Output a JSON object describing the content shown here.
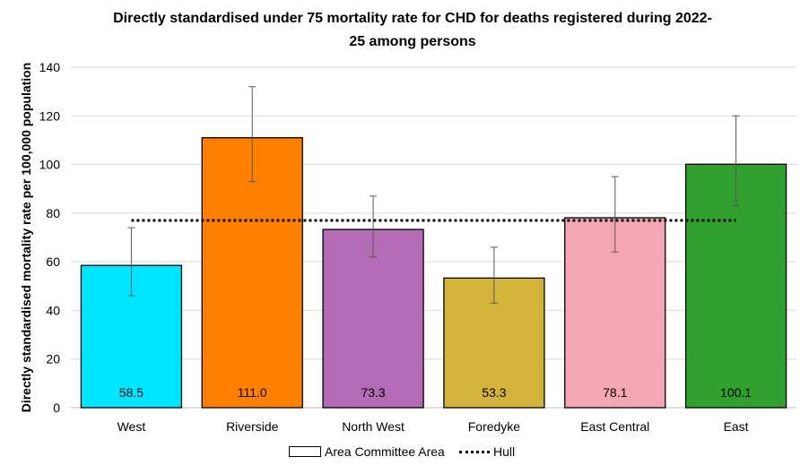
{
  "chart_data": {
    "type": "bar",
    "title": "Directly standardised under 75 mortality rate for CHD for deaths registered during 2022-25 among persons",
    "title_lines": [
      "Directly standardised under 75 mortality rate for CHD for deaths registered during 2022-",
      "25 among persons"
    ],
    "xlabel": "",
    "ylabel": "Directly standardised mortality rate per 100,000 population",
    "ylim": [
      0,
      140
    ],
    "yticks": [
      0,
      20,
      40,
      60,
      80,
      100,
      120,
      140
    ],
    "grid": true,
    "legend_position": "bottom",
    "categories": [
      "West",
      "Riverside",
      "North West",
      "Foredyke",
      "East Central",
      "East"
    ],
    "values": [
      58.5,
      111.0,
      73.3,
      53.3,
      78.1,
      100.1
    ],
    "value_labels": [
      "58.5",
      "111.0",
      "73.3",
      "53.3",
      "78.1",
      "100.1"
    ],
    "error_lower": [
      46,
      93,
      62,
      43,
      64,
      83
    ],
    "error_upper": [
      74,
      132,
      87,
      66,
      95,
      120
    ],
    "colors": [
      "#00E5FF",
      "#FF7F00",
      "#B36BB5",
      "#D4B33A",
      "#F4A6B2",
      "#31A02E"
    ],
    "reference_line": {
      "name": "Hull",
      "value": 77
    },
    "legend": {
      "bars_label": "Area Committee Area",
      "line_label": "Hull"
    }
  }
}
